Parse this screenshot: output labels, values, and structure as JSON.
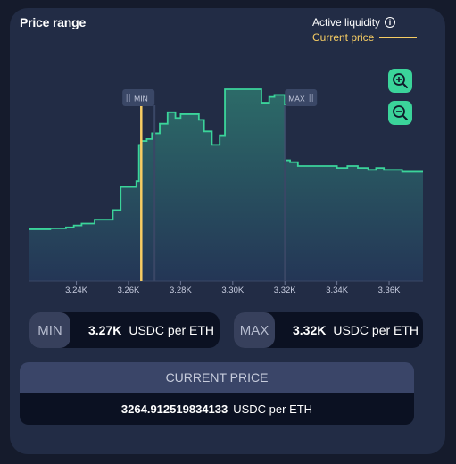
{
  "panel": {
    "title": "Price range",
    "legend_active": "Active liquidity",
    "legend_current": "Current price"
  },
  "zoom": {
    "zoom_in_icon": "magnifier-plus-icon",
    "zoom_out_icon": "magnifier-minus-icon"
  },
  "min_handle_label": "MIN",
  "max_handle_label": "MAX",
  "chart_data": {
    "type": "area",
    "xlabel": "",
    "ylabel": "",
    "x_ticks": [
      "3.24K",
      "3.26K",
      "3.28K",
      "3.30K",
      "3.32K",
      "3.34K",
      "3.36K"
    ],
    "x_tick_values": [
      3240,
      3260,
      3280,
      3300,
      3320,
      3340,
      3360
    ],
    "xlim": [
      3222,
      3373
    ],
    "ylim": [
      0,
      1
    ],
    "current_price": 3264.9,
    "range_min": 3270,
    "range_max": 3320,
    "series": [
      {
        "values": [
          [
            3222,
            0.27
          ],
          [
            3226,
            0.27
          ],
          [
            3230,
            0.275
          ],
          [
            3236,
            0.28
          ],
          [
            3239,
            0.29
          ],
          [
            3242,
            0.3
          ],
          [
            3247,
            0.32
          ],
          [
            3254,
            0.37
          ],
          [
            3257,
            0.49
          ],
          [
            3263,
            0.52
          ],
          [
            3264,
            0.71
          ],
          [
            3265,
            0.73
          ],
          [
            3267,
            0.74
          ],
          [
            3269,
            0.77
          ],
          [
            3272,
            0.82
          ],
          [
            3275,
            0.88
          ],
          [
            3278,
            0.85
          ],
          [
            3280,
            0.87
          ],
          [
            3282,
            0.87
          ],
          [
            3287,
            0.84
          ],
          [
            3289,
            0.78
          ],
          [
            3292,
            0.71
          ],
          [
            3295,
            0.76
          ],
          [
            3297,
            1.0
          ],
          [
            3305,
            1.0
          ],
          [
            3311,
            0.93
          ],
          [
            3314,
            0.96
          ],
          [
            3316,
            0.97
          ],
          [
            3320,
            0.63
          ],
          [
            3322,
            0.62
          ],
          [
            3325,
            0.6
          ],
          [
            3333,
            0.6
          ],
          [
            3340,
            0.59
          ],
          [
            3344,
            0.6
          ],
          [
            3348,
            0.59
          ],
          [
            3352,
            0.58
          ],
          [
            3355,
            0.59
          ],
          [
            3358,
            0.58
          ],
          [
            3365,
            0.57
          ],
          [
            3373,
            0.57
          ]
        ]
      }
    ]
  },
  "range": {
    "min_label": "MIN",
    "min_value": "3.27K",
    "min_unit": "USDC per ETH",
    "max_label": "MAX",
    "max_value": "3.32K",
    "max_unit": "USDC per ETH"
  },
  "current_price": {
    "button_label": "CURRENT PRICE",
    "value": "3264.912519834133",
    "unit": "USDC per ETH"
  },
  "colors": {
    "accent": "#3bd49a",
    "current_price": "#f7cd63",
    "card_bg": "#222c45",
    "handle_bg": "#3a4766"
  }
}
